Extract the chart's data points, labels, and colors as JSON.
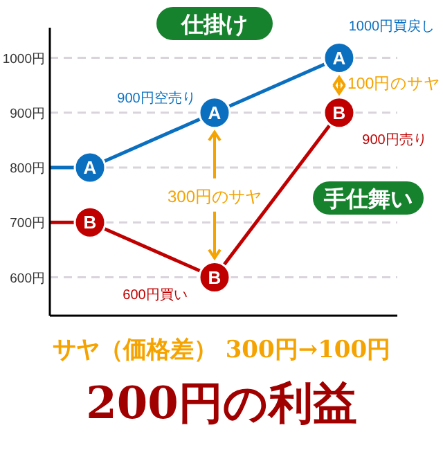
{
  "chart_data": {
    "type": "line",
    "categories": [
      null,
      null,
      null
    ],
    "series": [
      {
        "name": "A",
        "color": "#0b6fbf",
        "values": [
          800,
          900,
          1000
        ]
      },
      {
        "name": "B",
        "color": "#c00000",
        "values": [
          700,
          600,
          900
        ]
      }
    ],
    "ylim": [
      530,
      1055
    ],
    "yticks": [
      {
        "value": 600,
        "label": "600円"
      },
      {
        "value": 700,
        "label": "700円"
      },
      {
        "value": 800,
        "label": "800円"
      },
      {
        "value": 900,
        "label": "900円"
      },
      {
        "value": 1000,
        "label": "1000円"
      }
    ],
    "grid": "y",
    "marker": "circle",
    "tick_labels": "y",
    "annotations": [
      "仕掛け",
      "1000円買戻し",
      "900円空売り",
      "900円売り",
      "600円買い",
      "手仕舞い",
      "300円のサヤ",
      "100円のサヤ",
      "サヤ（価格差） 300円→100円",
      "200円の利益"
    ]
  }
}
